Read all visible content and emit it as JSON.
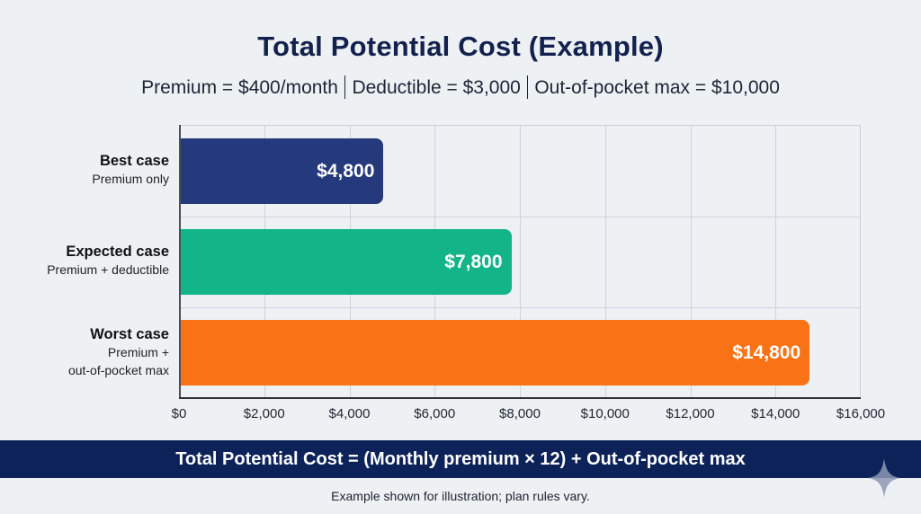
{
  "header": {
    "title": "Total Potential Cost (Example)",
    "subtitle_parts": [
      "Premium = $400/month",
      "Deductible = $3,000",
      "Out-of-pocket max = $10,000"
    ]
  },
  "chart_data": {
    "type": "bar",
    "orientation": "horizontal",
    "title": "Total Potential Cost (Example)",
    "subtitle": "Premium = $400/month | Deductible = $3,000 | Out-of-pocket max = $10,000",
    "categories": [
      "Best case",
      "Expected case",
      "Worst case"
    ],
    "category_descriptions": [
      "Premium only",
      "Premium + deductible",
      "Premium + out-of-pocket max"
    ],
    "values": [
      4800,
      7800,
      14800
    ],
    "value_labels": [
      "$4,800",
      "$7,800",
      "$14,800"
    ],
    "colors": [
      "#253a7c",
      "#12b488",
      "#f97316"
    ],
    "xlabel": "",
    "ylabel": "",
    "xlim": [
      0,
      16000
    ],
    "x_ticks": [
      "$0",
      "$2,000",
      "$4,000",
      "$6,000",
      "$8,000",
      "$10,000",
      "$12,000",
      "$14,000",
      "$16,000"
    ],
    "grid": true,
    "legend": null
  },
  "categories": [
    {
      "name": "Best case",
      "desc_lines": [
        "Premium only"
      ]
    },
    {
      "name": "Expected case",
      "desc_lines": [
        "Premium + deductible"
      ]
    },
    {
      "name": "Worst case",
      "desc_lines": [
        "Premium +",
        "out-of-pocket max"
      ]
    }
  ],
  "formula": "Total Potential Cost = (Monthly premium × 12) + Out-of-pocket max",
  "footnote": "Example shown for illustration; plan rules vary.",
  "icons": {
    "corner": "sparkle-icon"
  }
}
